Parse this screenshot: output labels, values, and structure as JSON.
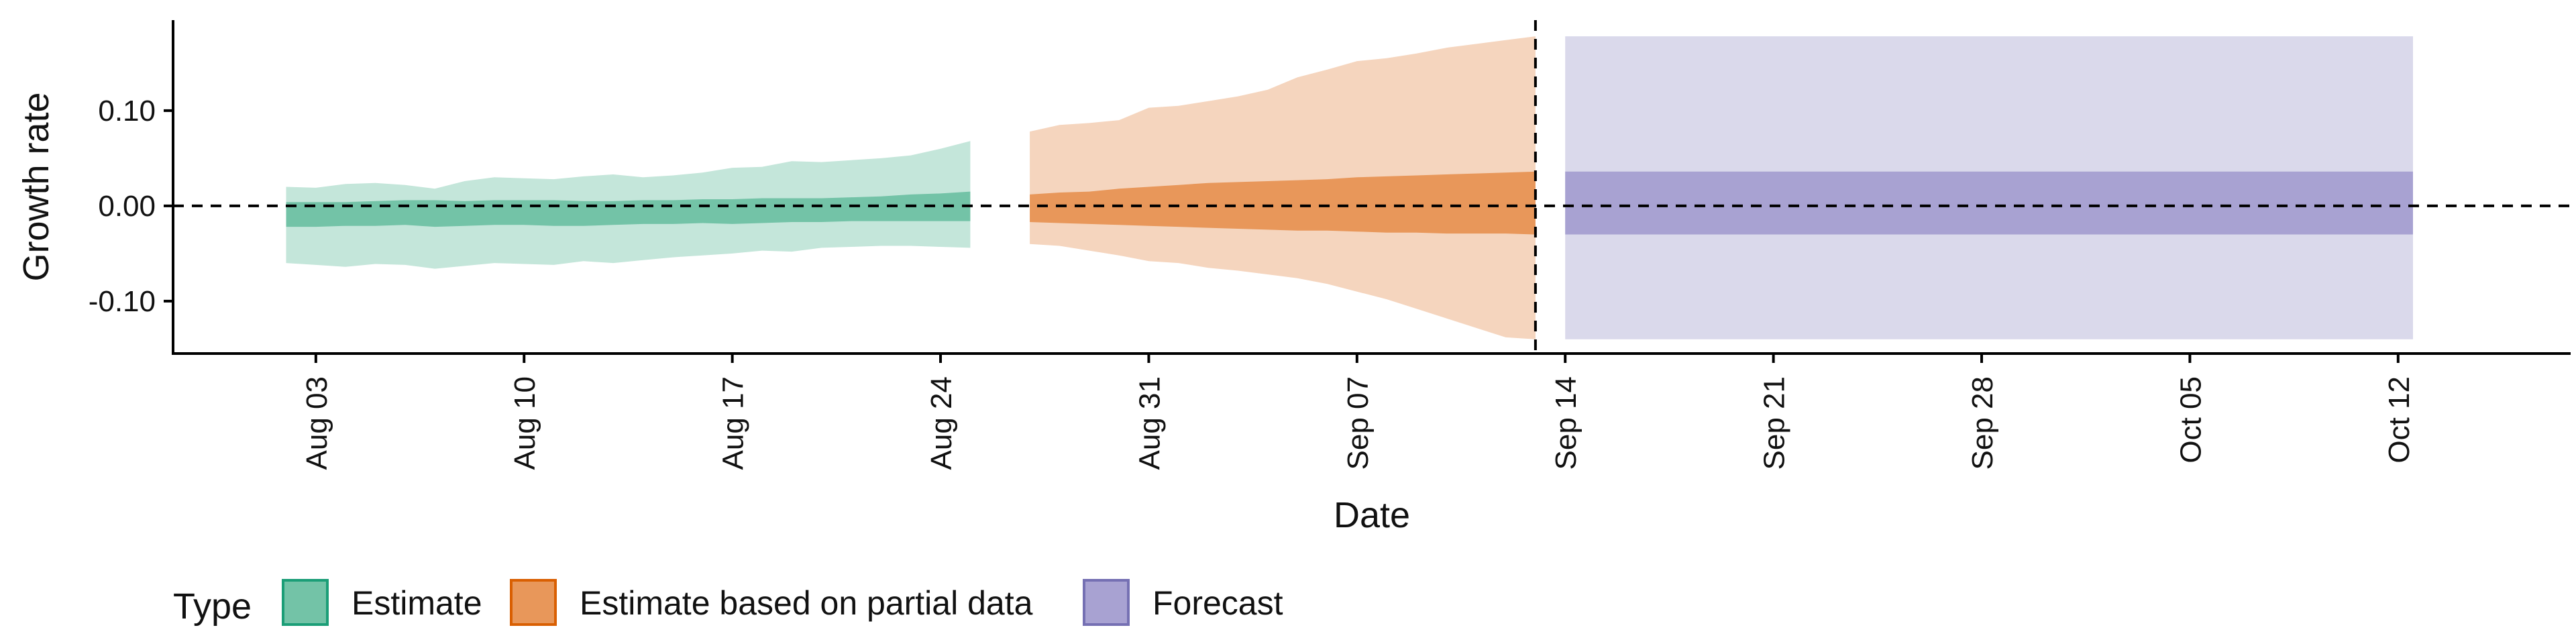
{
  "chart_data": {
    "type": "area",
    "xlabel": "Date",
    "ylabel": "Growth rate",
    "ylim": [
      -0.155,
      0.195
    ],
    "yticks": [
      {
        "value": -0.1,
        "label": "-0.10"
      },
      {
        "value": 0.0,
        "label": "0.00"
      },
      {
        "value": 0.1,
        "label": "0.10"
      }
    ],
    "xlim_day": [
      -4.8,
      75.8
    ],
    "xticks": [
      {
        "day": 0,
        "label": "Aug 03"
      },
      {
        "day": 7,
        "label": "Aug 10"
      },
      {
        "day": 14,
        "label": "Aug 17"
      },
      {
        "day": 21,
        "label": "Aug 24"
      },
      {
        "day": 28,
        "label": "Aug 31"
      },
      {
        "day": 35,
        "label": "Sep 07"
      },
      {
        "day": 42,
        "label": "Sep 14"
      },
      {
        "day": 49,
        "label": "Sep 21"
      },
      {
        "day": 56,
        "label": "Sep 28"
      },
      {
        "day": 63,
        "label": "Oct 05"
      },
      {
        "day": 70,
        "label": "Oct 12"
      }
    ],
    "hline_y": 0,
    "vline_day": 41,
    "grid": false,
    "legend": {
      "position": "bottom-left",
      "title": "Type",
      "entries": [
        {
          "label": "Estimate",
          "fill": "#73C3A7",
          "stroke": "#1B9E77"
        },
        {
          "label": "Estimate based on partial data",
          "fill": "#E8975A",
          "stroke": "#D95F02"
        },
        {
          "label": "Forecast",
          "fill": "#A8A2D2",
          "stroke": "#7570B3"
        }
      ]
    },
    "series": [
      {
        "name": "Estimate",
        "outer_color": "#C4E6DA",
        "inner_color": "#73C3A7",
        "x_day": [
          -1,
          0,
          1,
          2,
          3,
          4,
          5,
          6,
          7,
          8,
          9,
          10,
          11,
          12,
          13,
          14,
          15,
          16,
          17,
          18,
          19,
          20,
          21,
          22
        ],
        "outer_upper": [
          0.02,
          0.019,
          0.023,
          0.024,
          0.022,
          0.018,
          0.026,
          0.03,
          0.029,
          0.028,
          0.031,
          0.033,
          0.03,
          0.032,
          0.035,
          0.04,
          0.041,
          0.047,
          0.046,
          0.048,
          0.05,
          0.053,
          0.06,
          0.068
        ],
        "outer_lower": [
          -0.06,
          -0.062,
          -0.064,
          -0.061,
          -0.062,
          -0.066,
          -0.063,
          -0.06,
          -0.061,
          -0.062,
          -0.058,
          -0.06,
          -0.057,
          -0.054,
          -0.052,
          -0.05,
          -0.047,
          -0.048,
          -0.044,
          -0.043,
          -0.042,
          -0.042,
          -0.043,
          -0.044
        ],
        "inner_upper": [
          0.004,
          0.004,
          0.004,
          0.005,
          0.006,
          0.006,
          0.005,
          0.006,
          0.006,
          0.006,
          0.005,
          0.005,
          0.006,
          0.006,
          0.007,
          0.007,
          0.008,
          0.008,
          0.008,
          0.009,
          0.01,
          0.012,
          0.013,
          0.015
        ],
        "inner_lower": [
          -0.022,
          -0.022,
          -0.021,
          -0.021,
          -0.02,
          -0.022,
          -0.021,
          -0.02,
          -0.02,
          -0.021,
          -0.021,
          -0.02,
          -0.019,
          -0.019,
          -0.018,
          -0.019,
          -0.018,
          -0.017,
          -0.017,
          -0.016,
          -0.016,
          -0.016,
          -0.016,
          -0.016
        ]
      },
      {
        "name": "Estimate based on partial data",
        "outer_color": "#F5D5BE",
        "inner_color": "#E8975A",
        "x_day": [
          24,
          25,
          26,
          27,
          28,
          29,
          30,
          31,
          32,
          33,
          34,
          35,
          36,
          37,
          38,
          39,
          40,
          41
        ],
        "outer_upper": [
          0.078,
          0.085,
          0.087,
          0.09,
          0.103,
          0.105,
          0.11,
          0.115,
          0.122,
          0.135,
          0.143,
          0.152,
          0.155,
          0.16,
          0.166,
          0.17,
          0.174,
          0.178
        ],
        "outer_lower": [
          -0.04,
          -0.042,
          -0.047,
          -0.052,
          -0.058,
          -0.06,
          -0.065,
          -0.068,
          -0.072,
          -0.076,
          -0.082,
          -0.09,
          -0.098,
          -0.108,
          -0.118,
          -0.128,
          -0.138,
          -0.14
        ],
        "inner_upper": [
          0.012,
          0.014,
          0.015,
          0.018,
          0.02,
          0.022,
          0.024,
          0.025,
          0.026,
          0.027,
          0.028,
          0.03,
          0.031,
          0.032,
          0.033,
          0.034,
          0.035,
          0.036
        ],
        "inner_lower": [
          -0.017,
          -0.018,
          -0.019,
          -0.02,
          -0.021,
          -0.022,
          -0.023,
          -0.024,
          -0.025,
          -0.026,
          -0.026,
          -0.027,
          -0.028,
          -0.028,
          -0.029,
          -0.029,
          -0.029,
          -0.03
        ]
      },
      {
        "name": "Forecast",
        "outer_color": "#DAD9EB",
        "inner_color": "#A8A2D2",
        "x_day": [
          42,
          70.5
        ],
        "outer_upper": [
          0.178,
          0.178
        ],
        "outer_lower": [
          -0.14,
          -0.14
        ],
        "inner_upper": [
          0.036,
          0.036
        ],
        "inner_lower": [
          -0.03,
          -0.03
        ]
      }
    ]
  }
}
